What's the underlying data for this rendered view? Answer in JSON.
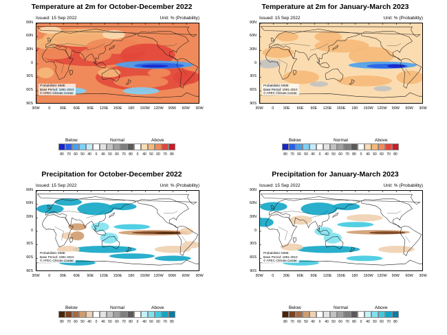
{
  "panels": [
    {
      "title": "Temperature at 2m for October-December 2022",
      "issued": "Issued: 15 Sep 2022",
      "unit": "Unit: % (Probability)",
      "scheme": "temperature",
      "info": [
        "Probabilistic MME",
        "Base Period: 1991-2010",
        "© APEC Climate Center"
      ]
    },
    {
      "title": "Temperature at 2m for January-March 2023",
      "issued": "Issued: 15 Sep 2022",
      "unit": "Unit: % (Probability)",
      "scheme": "temperature",
      "info": [
        "Probabilistic MME",
        "Base Period: 1991-2010",
        "© APEC Climate Center"
      ]
    },
    {
      "title": "Precipitation for October-December 2022",
      "issued": "Issued: 15 Sep 2022",
      "unit": "Unit: % (Probability)",
      "scheme": "precipitation",
      "info": [
        "Probabilistic MME",
        "Base Period: 1991-2010",
        "© APEC Climate Center"
      ]
    },
    {
      "title": "Precipitation for January-March 2023",
      "issued": "Issued: 15 Sep 2022",
      "unit": "Unit: % (Probability)",
      "scheme": "precipitation",
      "info": [
        "Probabilistic MME",
        "Base Period: 1991-2010",
        "© APEC Climate Center"
      ]
    }
  ],
  "axes": {
    "lat_labels": [
      "90N",
      "60N",
      "30N",
      "0",
      "30S",
      "60S",
      "90S"
    ],
    "lon_labels": [
      "30W",
      "0",
      "30E",
      "60E",
      "90E",
      "120E",
      "150E",
      "180",
      "150W",
      "120W",
      "90W",
      "60W",
      "30W"
    ]
  },
  "legend": {
    "categories": [
      "Below",
      "Normal",
      "Above"
    ],
    "ticks": [
      "80",
      "70",
      "60",
      "50",
      "40",
      "0",
      "40",
      "50",
      "60",
      "70",
      "80",
      "0",
      "40",
      "50",
      "60",
      "70",
      "80"
    ]
  },
  "colors": {
    "temperature": {
      "below": [
        "#1726c8",
        "#2a60e6",
        "#4aa0f0",
        "#7fd0f6",
        "#c2ecfb"
      ],
      "normal": [
        "#ffffff",
        "#e3e3e3",
        "#c2c2c2",
        "#a0a0a0",
        "#7e7e7e",
        "#5a5a5a"
      ],
      "above": [
        "#ffffff",
        "#fbdcb0",
        "#f5b97a",
        "#f08a5a",
        "#e2463a",
        "#cc1b25"
      ]
    },
    "precipitation": {
      "below": [
        "#4a2408",
        "#7a4220",
        "#a86a40",
        "#cf9c70",
        "#efd0b0"
      ],
      "normal": [
        "#ffffff",
        "#e3e3e3",
        "#c2c2c2",
        "#a0a0a0",
        "#7e7e7e",
        "#5a5a5a"
      ],
      "above": [
        "#ffffff",
        "#c0f3f8",
        "#7fe2ee",
        "#3fcae0",
        "#12a6c6",
        "#0b7ea2"
      ]
    }
  }
}
